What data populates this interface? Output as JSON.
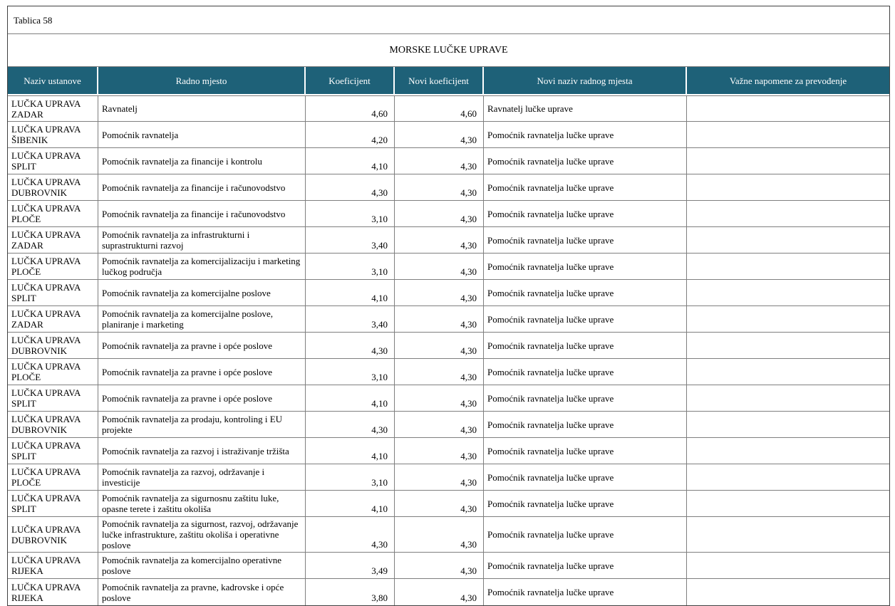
{
  "document": {
    "table_label": "Tablica 58",
    "title": "MORSKE LUČKE UPRAVE"
  },
  "colors": {
    "header_bg": "#1e6178",
    "header_text": "#ffffff",
    "grid_border": "#7f7f7f",
    "outer_border": "#404040",
    "body_text": "#000000"
  },
  "table": {
    "columns": [
      {
        "key": "naziv",
        "label": "Naziv ustanove"
      },
      {
        "key": "radno",
        "label": "Radno mjesto"
      },
      {
        "key": "koef",
        "label": "Koeficijent"
      },
      {
        "key": "novi_koef",
        "label": "Novi koeficijent"
      },
      {
        "key": "novi_naziv",
        "label": "Novi naziv radnog mjesta"
      },
      {
        "key": "napomene",
        "label": "Važne napomene za prevođenje"
      }
    ],
    "rows": [
      {
        "naziv": "LUČKA UPRAVA ZADAR",
        "radno": "Ravnatelj",
        "koef": "4,60",
        "novi_koef": "4,60",
        "novi_naziv": "Ravnatelj lučke uprave",
        "napomene": ""
      },
      {
        "naziv": "LUČKA UPRAVA ŠIBENIK",
        "radno": "Pomoćnik ravnatelja",
        "koef": "4,20",
        "novi_koef": "4,30",
        "novi_naziv": "Pomoćnik ravnatelja lučke uprave",
        "napomene": ""
      },
      {
        "naziv": "LUČKA UPRAVA SPLIT",
        "radno": "Pomoćnik ravnatelja za financije i kontrolu",
        "koef": "4,10",
        "novi_koef": "4,30",
        "novi_naziv": "Pomoćnik ravnatelja lučke uprave",
        "napomene": ""
      },
      {
        "naziv": "LUČKA UPRAVA DUBROVNIK",
        "radno": "Pomoćnik ravnatelja za financije i računovodstvo",
        "koef": "4,30",
        "novi_koef": "4,30",
        "novi_naziv": "Pomoćnik ravnatelja lučke uprave",
        "napomene": ""
      },
      {
        "naziv": "LUČKA UPRAVA PLOČE",
        "radno": "Pomoćnik ravnatelja za financije i računovodstvo",
        "koef": "3,10",
        "novi_koef": "4,30",
        "novi_naziv": "Pomoćnik ravnatelja lučke uprave",
        "napomene": ""
      },
      {
        "naziv": "LUČKA UPRAVA ZADAR",
        "radno": "Pomoćnik ravnatelja za infrastrukturni i suprastrukturni razvoj",
        "koef": "3,40",
        "novi_koef": "4,30",
        "novi_naziv": "Pomoćnik ravnatelja lučke uprave",
        "napomene": ""
      },
      {
        "naziv": "LUČKA UPRAVA PLOČE",
        "radno": "Pomoćnik ravnatelja za komercijalizaciju i marketing lučkog područja",
        "koef": "3,10",
        "novi_koef": "4,30",
        "novi_naziv": "Pomoćnik ravnatelja lučke uprave",
        "napomene": ""
      },
      {
        "naziv": "LUČKA UPRAVA SPLIT",
        "radno": "Pomoćnik ravnatelja za komercijalne poslove",
        "koef": "4,10",
        "novi_koef": "4,30",
        "novi_naziv": "Pomoćnik ravnatelja lučke uprave",
        "napomene": ""
      },
      {
        "naziv": "LUČKA UPRAVA ZADAR",
        "radno": "Pomoćnik ravnatelja za komercijalne poslove, planiranje i marketing",
        "koef": "3,40",
        "novi_koef": "4,30",
        "novi_naziv": "Pomoćnik ravnatelja lučke uprave",
        "napomene": ""
      },
      {
        "naziv": "LUČKA UPRAVA DUBROVNIK",
        "radno": "Pomoćnik ravnatelja za pravne i opće poslove",
        "koef": "4,30",
        "novi_koef": "4,30",
        "novi_naziv": "Pomoćnik ravnatelja lučke uprave",
        "napomene": ""
      },
      {
        "naziv": "LUČKA UPRAVA PLOČE",
        "radno": "Pomoćnik ravnatelja za pravne i opće poslove",
        "koef": "3,10",
        "novi_koef": "4,30",
        "novi_naziv": "Pomoćnik ravnatelja lučke uprave",
        "napomene": ""
      },
      {
        "naziv": "LUČKA UPRAVA SPLIT",
        "radno": "Pomoćnik ravnatelja za pravne i opće poslove",
        "koef": "4,10",
        "novi_koef": "4,30",
        "novi_naziv": "Pomoćnik ravnatelja lučke uprave",
        "napomene": ""
      },
      {
        "naziv": "LUČKA UPRAVA DUBROVNIK",
        "radno": "Pomoćnik ravnatelja za prodaju, kontroling i EU projekte",
        "koef": "4,30",
        "novi_koef": "4,30",
        "novi_naziv": "Pomoćnik ravnatelja lučke uprave",
        "napomene": ""
      },
      {
        "naziv": "LUČKA UPRAVA SPLIT",
        "radno": "Pomoćnik ravnatelja za razvoj i istraživanje tržišta",
        "koef": "4,10",
        "novi_koef": "4,30",
        "novi_naziv": "Pomoćnik ravnatelja lučke uprave",
        "napomene": ""
      },
      {
        "naziv": "LUČKA UPRAVA PLOČE",
        "radno": "Pomoćnik ravnatelja za razvoj, održavanje i investicije",
        "koef": "3,10",
        "novi_koef": "4,30",
        "novi_naziv": "Pomoćnik ravnatelja lučke uprave",
        "napomene": ""
      },
      {
        "naziv": "LUČKA UPRAVA SPLIT",
        "radno": "Pomoćnik ravnatelja za sigurnosnu zaštitu luke, opasne terete i zaštitu okoliša",
        "koef": "4,10",
        "novi_koef": "4,30",
        "novi_naziv": "Pomoćnik ravnatelja lučke uprave",
        "napomene": ""
      },
      {
        "naziv": "LUČKA UPRAVA DUBROVNIK",
        "radno": "Pomoćnik ravnatelja za sigurnost, razvoj, održavanje lučke infrastrukture, zaštitu okoliša i operativne poslove",
        "koef": "4,30",
        "novi_koef": "4,30",
        "novi_naziv": "Pomoćnik ravnatelja lučke uprave",
        "napomene": ""
      },
      {
        "naziv": "LUČKA UPRAVA RIJEKA",
        "radno": "Pomoćnik ravnatelja za komercijalno operativne poslove",
        "koef": "3,49",
        "novi_koef": "4,30",
        "novi_naziv": "Pomoćnik ravnatelja lučke uprave",
        "napomene": ""
      },
      {
        "naziv": "LUČKA UPRAVA RIJEKA",
        "radno": "Pomoćnik ravnatelja za pravne, kadrovske i opće poslove",
        "koef": "3,80",
        "novi_koef": "4,30",
        "novi_naziv": "Pomoćnik ravnatelja lučke uprave",
        "napomene": ""
      }
    ]
  }
}
